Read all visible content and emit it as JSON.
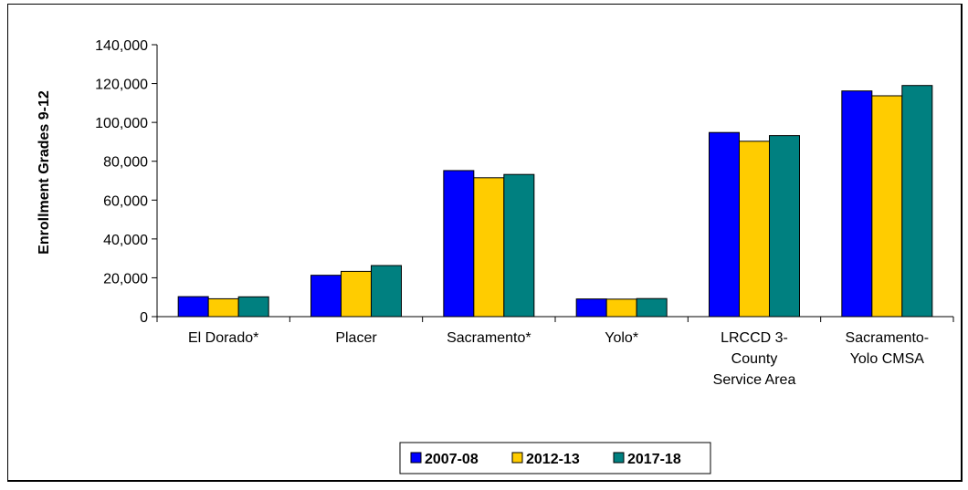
{
  "chart_data": {
    "type": "bar",
    "title": "",
    "xlabel": "",
    "ylabel": "Enrollment Grades 9-12",
    "ylim": [
      0,
      140000
    ],
    "yticks": [
      0,
      20000,
      40000,
      60000,
      80000,
      100000,
      120000,
      140000
    ],
    "ytick_labels": [
      "0",
      "20,000",
      "40,000",
      "60,000",
      "80,000",
      "100,000",
      "120,000",
      "140,000"
    ],
    "categories": [
      [
        "El Dorado*"
      ],
      [
        "Placer"
      ],
      [
        "Sacramento*"
      ],
      [
        "Yolo*"
      ],
      [
        "LRCCD 3-",
        "County",
        "Service Area"
      ],
      [
        "Sacramento-",
        "Yolo CMSA"
      ]
    ],
    "series": [
      {
        "name": "2007-08",
        "color": "#0000FF",
        "values": [
          10300,
          21300,
          75200,
          9100,
          94800,
          116200
        ]
      },
      {
        "name": "2012-13",
        "color": "#FFCC00",
        "values": [
          9200,
          23300,
          71500,
          9000,
          90300,
          113700
        ]
      },
      {
        "name": "2017-18",
        "color": "#008080",
        "values": [
          10200,
          26300,
          73200,
          9300,
          93200,
          119000
        ]
      }
    ],
    "grid": false,
    "legend_position": "bottom-center"
  }
}
